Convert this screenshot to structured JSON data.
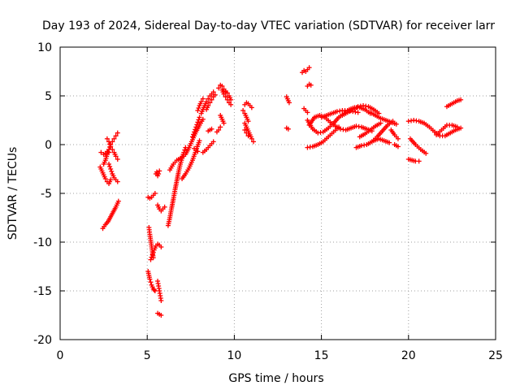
{
  "chart_data": {
    "type": "scatter",
    "title": "Day 193 of 2024, Sidereal Day-to-day VTEC variation (SDTVAR) for receiver larr",
    "xlabel": "GPS time / hours",
    "ylabel": "SDTVAR / TECUs",
    "xlim": [
      0,
      25
    ],
    "ylim": [
      -20,
      10
    ],
    "xticks": [
      0,
      5,
      10,
      15,
      20,
      25
    ],
    "yticks": [
      -20,
      -15,
      -10,
      -5,
      0,
      5,
      10
    ],
    "grid": true,
    "marker": "plus",
    "color": "#ff0000",
    "segments": [
      {
        "x": [
          2.35,
          2.5,
          2.6,
          2.7,
          2.8
        ],
        "y": [
          -0.8,
          -1.0,
          -0.9,
          -0.7,
          -0.8
        ]
      },
      {
        "x": [
          2.3,
          2.4,
          2.5,
          2.6,
          2.7,
          2.8,
          2.9
        ],
        "y": [
          -2.3,
          -2.7,
          -3.1,
          -3.5,
          -3.8,
          -4.0,
          -3.6
        ]
      },
      {
        "x": [
          2.5,
          2.6,
          2.7,
          2.8,
          2.9,
          3.0,
          3.1,
          3.2,
          3.3
        ],
        "y": [
          -2.0,
          -1.6,
          -1.0,
          -0.5,
          0.0,
          0.3,
          0.6,
          0.9,
          1.2
        ]
      },
      {
        "x": [
          2.7,
          2.8,
          2.9,
          3.0,
          3.1,
          3.2,
          3.3
        ],
        "y": [
          0.6,
          0.3,
          -0.2,
          -0.5,
          -0.8,
          -1.2,
          -1.5
        ]
      },
      {
        "x": [
          2.8,
          2.9,
          3.0,
          3.1,
          3.2,
          3.3
        ],
        "y": [
          -2.0,
          -2.5,
          -3.0,
          -3.4,
          -3.6,
          -3.8
        ]
      },
      {
        "x": [
          2.45,
          2.6,
          2.75,
          2.9,
          3.05,
          3.2,
          3.35
        ],
        "y": [
          -8.6,
          -8.2,
          -7.9,
          -7.4,
          -6.9,
          -6.4,
          -5.8
        ]
      },
      {
        "x": [
          5.05,
          5.1,
          5.15,
          5.2,
          5.25,
          5.3,
          5.35,
          5.4,
          5.45
        ],
        "y": [
          -13.0,
          -13.4,
          -13.8,
          -14.1,
          -14.4,
          -14.6,
          -14.8,
          -14.9,
          -15.0
        ]
      },
      {
        "x": [
          5.1,
          5.15,
          5.2,
          5.25,
          5.3,
          5.35
        ],
        "y": [
          -8.5,
          -9.2,
          -9.8,
          -10.4,
          -11.0,
          -11.6
        ]
      },
      {
        "x": [
          5.2,
          5.3,
          5.4,
          5.5,
          5.6,
          5.7,
          5.8
        ],
        "y": [
          -11.8,
          -11.3,
          -10.8,
          -10.4,
          -10.2,
          -10.3,
          -10.5
        ]
      },
      {
        "x": [
          5.6,
          5.65,
          5.7,
          5.75,
          5.8
        ],
        "y": [
          -14.0,
          -14.5,
          -15.0,
          -15.5,
          -16.0
        ]
      },
      {
        "x": [
          5.6,
          5.7,
          5.8
        ],
        "y": [
          -17.3,
          -17.4,
          -17.5
        ]
      },
      {
        "x": [
          5.05,
          5.15,
          5.25,
          5.35,
          5.45
        ],
        "y": [
          -5.4,
          -5.5,
          -5.4,
          -5.2,
          -5.0
        ]
      },
      {
        "x": [
          5.5,
          5.55,
          5.6,
          5.65,
          5.7
        ],
        "y": [
          -3.0,
          -2.8,
          -3.2,
          -3.0,
          -2.7
        ]
      },
      {
        "x": [
          5.6,
          5.7,
          5.8,
          5.9,
          6.0
        ],
        "y": [
          -6.2,
          -6.6,
          -6.8,
          -6.6,
          -6.4
        ]
      },
      {
        "x": [
          6.2,
          6.3,
          6.4,
          6.5,
          6.6,
          6.7,
          6.8,
          6.9,
          7.0,
          7.1,
          7.2
        ],
        "y": [
          -8.3,
          -7.5,
          -6.5,
          -5.6,
          -4.6,
          -3.7,
          -2.8,
          -2.0,
          -1.4,
          -0.8,
          -0.3
        ]
      },
      {
        "x": [
          6.3,
          6.5,
          6.7,
          6.9,
          7.1
        ],
        "y": [
          -2.6,
          -2.0,
          -1.6,
          -1.4,
          -1.2
        ]
      },
      {
        "x": [
          7.0,
          7.2,
          7.4,
          7.6,
          7.8,
          8.0
        ],
        "y": [
          -3.5,
          -3.0,
          -2.4,
          -1.6,
          -0.6,
          0.4
        ]
      },
      {
        "x": [
          7.2,
          7.4,
          7.6,
          7.8,
          8.0,
          8.2
        ],
        "y": [
          -1.0,
          -0.3,
          0.5,
          1.3,
          2.0,
          2.6
        ]
      },
      {
        "x": [
          7.6,
          7.7,
          7.8,
          7.9,
          8.0
        ],
        "y": [
          0.8,
          1.3,
          1.8,
          2.3,
          2.8
        ]
      },
      {
        "x": [
          7.9,
          8.0,
          8.1,
          8.2
        ],
        "y": [
          3.5,
          4.0,
          4.4,
          4.7
        ]
      },
      {
        "x": [
          7.7,
          7.8,
          7.9
        ],
        "y": [
          -0.4,
          -0.6,
          -0.7
        ]
      },
      {
        "x": [
          8.1,
          8.2,
          8.3,
          8.4,
          8.5,
          8.6,
          8.7,
          8.8
        ],
        "y": [
          3.2,
          3.6,
          4.0,
          4.4,
          4.7,
          5.0,
          5.2,
          5.4
        ]
      },
      {
        "x": [
          8.4,
          8.5,
          8.6,
          8.7,
          8.8,
          8.9
        ],
        "y": [
          3.6,
          4.0,
          4.3,
          4.6,
          4.9,
          5.1
        ]
      },
      {
        "x": [
          8.2,
          8.4,
          8.6,
          8.8
        ],
        "y": [
          -0.8,
          -0.5,
          -0.1,
          0.3
        ]
      },
      {
        "x": [
          8.5,
          8.6,
          8.7
        ],
        "y": [
          1.4,
          1.5,
          1.6
        ]
      },
      {
        "x": [
          9.1,
          9.2,
          9.3,
          9.4,
          9.5
        ],
        "y": [
          5.8,
          6.1,
          6.0,
          5.7,
          5.4
        ]
      },
      {
        "x": [
          9.3,
          9.4,
          9.5,
          9.6,
          9.7,
          9.8
        ],
        "y": [
          5.6,
          5.2,
          4.9,
          4.6,
          4.3,
          4.1
        ]
      },
      {
        "x": [
          9.4,
          9.5,
          9.6,
          9.7,
          9.8
        ],
        "y": [
          5.2,
          5.5,
          5.3,
          5.0,
          4.6
        ]
      },
      {
        "x": [
          9.2,
          9.3,
          9.4
        ],
        "y": [
          3.0,
          2.6,
          2.2
        ]
      },
      {
        "x": [
          9.0,
          9.1,
          9.2
        ],
        "y": [
          1.3,
          1.5,
          1.8
        ]
      },
      {
        "x": [
          10.6,
          10.7,
          10.8,
          10.9,
          11.0
        ],
        "y": [
          4.1,
          4.3,
          4.2,
          4.0,
          3.8
        ]
      },
      {
        "x": [
          10.5,
          10.6,
          10.7,
          10.8
        ],
        "y": [
          3.5,
          3.2,
          2.8,
          2.4
        ]
      },
      {
        "x": [
          10.6,
          10.7,
          10.8,
          10.9,
          11.0,
          11.1
        ],
        "y": [
          2.2,
          1.8,
          1.4,
          1.0,
          0.6,
          0.3
        ]
      },
      {
        "x": [
          10.6,
          10.7,
          10.8
        ],
        "y": [
          1.5,
          1.2,
          0.9
        ]
      },
      {
        "x": [
          13.0,
          13.05,
          13.1,
          13.15
        ],
        "y": [
          4.9,
          4.7,
          4.5,
          4.3
        ]
      },
      {
        "x": [
          13.0,
          13.1
        ],
        "y": [
          1.7,
          1.6
        ]
      },
      {
        "x": [
          13.9,
          14.0,
          14.1,
          14.2,
          14.3
        ],
        "y": [
          7.4,
          7.6,
          7.5,
          7.7,
          7.9
        ]
      },
      {
        "x": [
          14.2,
          14.3,
          14.4
        ],
        "y": [
          6.0,
          6.2,
          6.1
        ]
      },
      {
        "x": [
          14.0,
          14.1,
          14.2
        ],
        "y": [
          3.7,
          3.5,
          3.3
        ]
      },
      {
        "x": [
          14.2,
          14.5,
          14.8,
          15.1,
          15.4,
          15.7,
          16.0,
          16.3,
          16.6,
          16.9,
          17.2,
          17.5,
          17.8
        ],
        "y": [
          2.5,
          1.6,
          1.2,
          1.3,
          1.7,
          2.2,
          2.8,
          3.2,
          3.6,
          3.8,
          3.8,
          3.6,
          3.2
        ]
      },
      {
        "x": [
          14.3,
          14.6,
          14.9,
          15.2,
          15.5,
          15.8,
          16.1,
          16.4,
          16.7,
          17.0,
          17.3,
          17.6,
          17.9
        ],
        "y": [
          2.0,
          2.8,
          3.0,
          2.8,
          2.3,
          1.9,
          1.6,
          1.5,
          1.7,
          1.9,
          1.8,
          1.6,
          1.4
        ]
      },
      {
        "x": [
          14.2,
          14.5,
          14.8,
          15.1,
          15.4,
          15.7,
          16.0
        ],
        "y": [
          -0.3,
          -0.2,
          0.0,
          0.3,
          0.8,
          1.3,
          1.8
        ]
      },
      {
        "x": [
          15.0,
          15.3,
          15.6,
          15.9,
          16.2,
          16.5,
          16.8,
          17.1
        ],
        "y": [
          2.8,
          3.0,
          3.2,
          3.4,
          3.5,
          3.5,
          3.4,
          3.3
        ]
      },
      {
        "x": [
          16.2,
          16.5,
          16.8,
          17.1,
          17.4,
          17.7,
          18.0,
          18.3
        ],
        "y": [
          3.0,
          3.3,
          3.6,
          3.9,
          4.0,
          3.9,
          3.6,
          3.2
        ]
      },
      {
        "x": [
          17.0,
          17.3,
          17.6,
          17.9,
          18.2,
          18.5,
          18.8,
          19.1
        ],
        "y": [
          -0.3,
          -0.1,
          0.0,
          0.3,
          0.8,
          1.4,
          2.0,
          2.4
        ]
      },
      {
        "x": [
          17.2,
          17.5,
          17.8,
          18.1,
          18.4
        ],
        "y": [
          0.8,
          1.1,
          1.5,
          1.9,
          2.2
        ]
      },
      {
        "x": [
          17.8,
          18.1,
          18.4,
          18.7,
          19.0,
          19.3
        ],
        "y": [
          3.3,
          3.0,
          2.7,
          2.5,
          2.3,
          2.1
        ]
      },
      {
        "x": [
          18.0,
          18.3,
          18.6,
          18.9
        ],
        "y": [
          0.4,
          0.6,
          0.4,
          0.2
        ]
      },
      {
        "x": [
          19.0,
          19.2,
          19.4
        ],
        "y": [
          1.5,
          1.0,
          0.6
        ]
      },
      {
        "x": [
          19.2,
          19.4
        ],
        "y": [
          0.0,
          -0.2
        ]
      },
      {
        "x": [
          20.0,
          20.3,
          20.6,
          20.9,
          21.2,
          21.5,
          21.8,
          22.1,
          22.4,
          22.7,
          23.0
        ],
        "y": [
          2.4,
          2.5,
          2.4,
          2.2,
          1.8,
          1.3,
          0.9,
          0.9,
          1.2,
          1.5,
          1.7
        ]
      },
      {
        "x": [
          20.1,
          20.4,
          20.7,
          21.0
        ],
        "y": [
          0.6,
          0.0,
          -0.5,
          -0.9
        ]
      },
      {
        "x": [
          20.0,
          20.2,
          20.4,
          20.6
        ],
        "y": [
          -1.5,
          -1.6,
          -1.7,
          -1.7
        ]
      },
      {
        "x": [
          21.6,
          21.9,
          22.2,
          22.5,
          22.8
        ],
        "y": [
          1.0,
          1.5,
          2.0,
          2.0,
          1.8
        ]
      },
      {
        "x": [
          22.2,
          22.4,
          22.6,
          22.8,
          23.0
        ],
        "y": [
          3.9,
          4.1,
          4.3,
          4.5,
          4.6
        ]
      }
    ]
  }
}
